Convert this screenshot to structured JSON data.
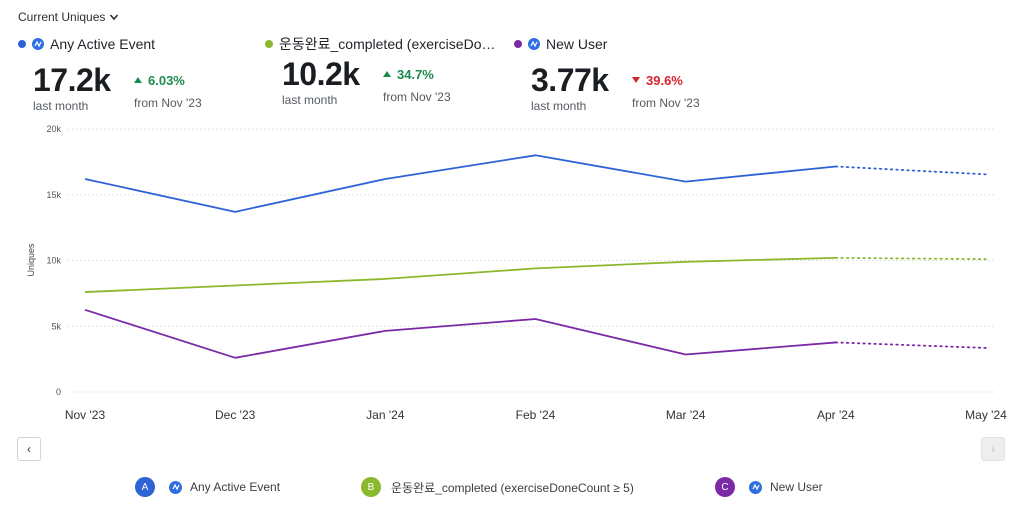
{
  "header": {
    "metric_label": "Current Uniques"
  },
  "series_cards": [
    {
      "name": "Any Active Event",
      "value": "17.2k",
      "period": "last month",
      "delta": "6.03%",
      "delta_dir": "up",
      "comparison": "from Nov '23",
      "color": "#2e63d6"
    },
    {
      "name": "운동완료_completed (exerciseDo…",
      "value": "10.2k",
      "period": "last month",
      "delta": "34.7%",
      "delta_dir": "up",
      "comparison": "from Nov '23",
      "color": "#8cb82e"
    },
    {
      "name": "New User",
      "value": "3.77k",
      "period": "last month",
      "delta": "39.6%",
      "delta_dir": "down",
      "comparison": "from Nov '23",
      "color": "#7a2aa5"
    }
  ],
  "chart_data": {
    "type": "line",
    "ylabel": "Uniques",
    "ylim": [
      0,
      20000
    ],
    "y_ticks": [
      "0",
      "5k",
      "10k",
      "15k",
      "20k"
    ],
    "y_tick_values": [
      0,
      5000,
      10000,
      15000,
      20000
    ],
    "categories": [
      "Nov '23",
      "Dec '23",
      "Jan '24",
      "Feb '24",
      "Mar '24",
      "Apr '24",
      "May '24"
    ],
    "grid": true,
    "series": [
      {
        "name": "Any Active Event",
        "color": "#2e63d6",
        "values": [
          16200,
          13700,
          16200,
          18000,
          16000,
          17150,
          16550
        ],
        "projected_from_index": 5
      },
      {
        "name": "운동완료_completed (exerciseDoneCount ≥ 5)",
        "color": "#8cb82e",
        "values": [
          7600,
          8100,
          8600,
          9400,
          9900,
          10200,
          10100
        ],
        "projected_from_index": 5
      },
      {
        "name": "New User",
        "color": "#7a2aa5",
        "values": [
          6250,
          2600,
          4650,
          5550,
          2850,
          3770,
          3350
        ],
        "projected_from_index": 5
      }
    ]
  },
  "legend": [
    {
      "letter": "A",
      "label": "Any Active Event",
      "color": "#2e63d6"
    },
    {
      "letter": "B",
      "label": "운동완료_completed (exerciseDoneCount ≥ 5)",
      "color": "#8cb82e"
    },
    {
      "letter": "C",
      "label": "New User",
      "color": "#7a2aa5"
    }
  ],
  "nav": {
    "prev": "‹",
    "next": "›"
  }
}
